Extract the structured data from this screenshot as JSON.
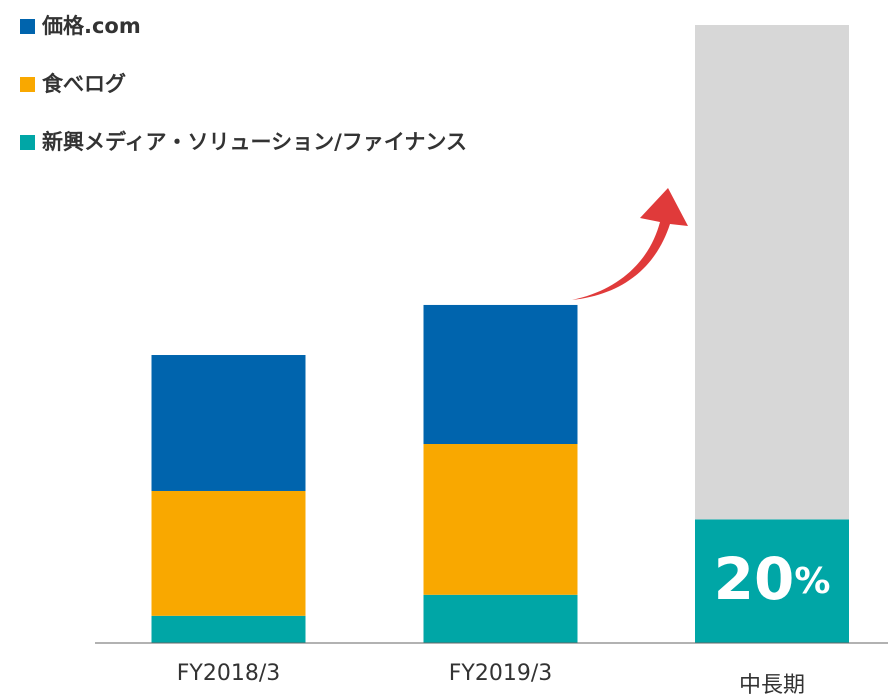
{
  "chart_data": {
    "type": "stacked_bar",
    "categories": [
      "FY2018/3",
      "FY2019/3",
      "中長期"
    ],
    "series": [
      {
        "name": "新興メディア・ソリューション/ファイナンス",
        "color": "#00a6a6",
        "values": [
          4.4,
          7.8,
          20
        ],
        "value_labels": [
          null,
          null,
          "20%"
        ]
      },
      {
        "name": "食べログ",
        "color": "#f9a800",
        "values": [
          20.2,
          24.4,
          null
        ]
      },
      {
        "name": "価格.com",
        "color": "#0064ad",
        "values": [
          22.0,
          22.5,
          null
        ]
      },
      {
        "color": "#d7d7d7",
        "values": [
          null,
          null,
          80
        ]
      }
    ],
    "ylim": [
      0,
      100
    ]
  }
}
